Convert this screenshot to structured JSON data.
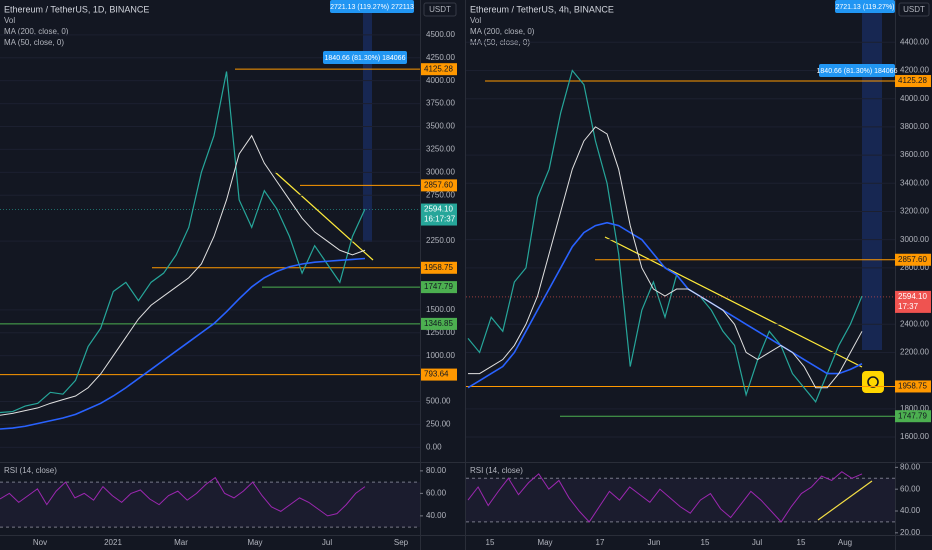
{
  "currency": "USDT",
  "panels": [
    {
      "title": "Ethereum / TetherUS, 1D, BINANCE",
      "indicators": [
        "Vol",
        "MA (200, close, 0)",
        "MA (50, close, 0)"
      ],
      "ylim": [
        -160,
        4880
      ],
      "yticks": [
        {
          "value": 4500,
          "label": "4500.00"
        },
        {
          "value": 4250,
          "label": "4250.00"
        },
        {
          "value": 4000,
          "label": "4000.00"
        },
        {
          "value": 3750,
          "label": "3750.00"
        },
        {
          "value": 3500,
          "label": "3500.00"
        },
        {
          "value": 3250,
          "label": "3250.00"
        },
        {
          "value": 3000,
          "label": "3000.00"
        },
        {
          "value": 2750,
          "label": "2750.00"
        },
        {
          "value": 2250,
          "label": "2250.00"
        },
        {
          "value": 1500,
          "label": "1500.00"
        },
        {
          "value": 1250,
          "label": "1250.00"
        },
        {
          "value": 1000,
          "label": "1000.00"
        },
        {
          "value": 500,
          "label": "500.00"
        },
        {
          "value": 250,
          "label": "250.00"
        },
        {
          "value": 0,
          "label": "0.00"
        }
      ],
      "levels": [
        {
          "value": 4125.28,
          "label": "4125.28",
          "color": "#ff9800"
        },
        {
          "value": 2857.6,
          "label": "2857.60",
          "color": "#ff9800"
        },
        {
          "value": 1958.75,
          "label": "1958.75",
          "color": "#ff9800"
        },
        {
          "value": 1747.79,
          "label": "1747.79",
          "color": "#4caf50"
        },
        {
          "value": 1346.85,
          "label": "1346.85",
          "color": "#4caf50"
        },
        {
          "value": 793.64,
          "label": "793.64",
          "color": "#ff9800"
        }
      ],
      "badge": {
        "value": 2594.1,
        "label": "2594.10",
        "countdown": "16:17:37",
        "color": "#26a69a"
      },
      "measures": [
        "2721.13 (119.27%) 272113",
        "1840.66 (81.30%) 184066"
      ],
      "time_labels": [
        "Nov",
        "2021",
        "Mar",
        "May",
        "Jul",
        "Sep"
      ],
      "rsi_label": "RSI (14, close)",
      "rsi_ylim": [
        23,
        87
      ],
      "rsi_ticks": [
        {
          "value": 80,
          "label": "80.00"
        },
        {
          "value": 60,
          "label": "60.00"
        },
        {
          "value": 40,
          "label": "40.00"
        }
      ],
      "rsi_bands": [
        70,
        30
      ],
      "price": [
        380,
        390,
        450,
        480,
        600,
        580,
        730,
        1100,
        1300,
        1700,
        1800,
        1600,
        1800,
        1900,
        2100,
        2400,
        3000,
        3400,
        4100,
        2700,
        2400,
        2800,
        2600,
        2300,
        1900,
        2200,
        2000,
        1800,
        2300,
        2600
      ],
      "ma50": [
        350,
        370,
        400,
        430,
        480,
        520,
        560,
        650,
        800,
        1000,
        1200,
        1400,
        1550,
        1650,
        1750,
        1850,
        2000,
        2300,
        2700,
        3200,
        3400,
        3100,
        2900,
        2700,
        2500,
        2350,
        2250,
        2150,
        2100,
        2150
      ],
      "ma200": [
        200,
        210,
        230,
        260,
        290,
        320,
        360,
        420,
        480,
        560,
        650,
        750,
        850,
        950,
        1050,
        1150,
        1250,
        1350,
        1480,
        1620,
        1750,
        1850,
        1920,
        1970,
        2000,
        2020,
        2030,
        2040,
        2050,
        2060
      ],
      "rsi": [
        55,
        60,
        52,
        58,
        64,
        50,
        62,
        70,
        56,
        60,
        54,
        66,
        58,
        52,
        60,
        63,
        55,
        50,
        58,
        62,
        54,
        60,
        68,
        74,
        60,
        56,
        62,
        70,
        58,
        48,
        44,
        50,
        56,
        52,
        46,
        40,
        42,
        50,
        60,
        66
      ]
    },
    {
      "title": "Ethereum / TetherUS, 4h, BINANCE",
      "indicators": [
        "Vol",
        "MA (200, close, 0)",
        "MA (50, close, 0)"
      ],
      "ylim": [
        1423,
        4700
      ],
      "yticks": [
        {
          "value": 4400,
          "label": "4400.00"
        },
        {
          "value": 4200,
          "label": "4200.00"
        },
        {
          "value": 4000,
          "label": "4000.00"
        },
        {
          "value": 3800,
          "label": "3800.00"
        },
        {
          "value": 3600,
          "label": "3600.00"
        },
        {
          "value": 3400,
          "label": "3400.00"
        },
        {
          "value": 3200,
          "label": "3200.00"
        },
        {
          "value": 3000,
          "label": "3000.00"
        },
        {
          "value": 2800,
          "label": "2800.00"
        },
        {
          "value": 2400,
          "label": "2400.00"
        },
        {
          "value": 2200,
          "label": "2200.00"
        },
        {
          "value": 1800,
          "label": "1800.00"
        },
        {
          "value": 1600,
          "label": "1600.00"
        }
      ],
      "levels": [
        {
          "value": 4125.28,
          "label": "4125.28",
          "color": "#ff9800"
        },
        {
          "value": 2857.6,
          "label": "2857.60",
          "color": "#ff9800"
        },
        {
          "value": 1958.75,
          "label": "1958.75",
          "color": "#ff9800"
        },
        {
          "value": 1747.79,
          "label": "1747.79",
          "color": "#4caf50"
        }
      ],
      "badge": {
        "value": 2594.1,
        "label": "2594.10",
        "countdown": "17:37",
        "color": "#ef5350"
      },
      "measures": [
        "2721.13 (119.27%)",
        "1840.66 (81.30%) 184066"
      ],
      "time_labels": [
        "15",
        "May",
        "17",
        "Jun",
        "15",
        "Jul",
        "15",
        "Aug"
      ],
      "rsi_label": "RSI (14, close)",
      "rsi_ylim": [
        18,
        84
      ],
      "rsi_ticks": [
        {
          "value": 80,
          "label": "80.00"
        },
        {
          "value": 60,
          "label": "60.00"
        },
        {
          "value": 40,
          "label": "40.00"
        },
        {
          "value": 20,
          "label": "20.00"
        }
      ],
      "rsi_bands": [
        70,
        30
      ],
      "price": [
        2300,
        2200,
        2450,
        2350,
        2700,
        2800,
        3300,
        3500,
        3900,
        4200,
        4100,
        3700,
        3400,
        2900,
        2100,
        2500,
        2700,
        2450,
        2750,
        2650,
        2600,
        2500,
        2350,
        2250,
        1900,
        2150,
        2350,
        2250,
        2050,
        1950,
        1850,
        2050,
        2250,
        2400,
        2600
      ],
      "ma50": [
        2050,
        2050,
        2100,
        2150,
        2250,
        2400,
        2600,
        2900,
        3200,
        3500,
        3700,
        3800,
        3750,
        3500,
        3100,
        2800,
        2650,
        2600,
        2650,
        2650,
        2600,
        2550,
        2500,
        2400,
        2200,
        2150,
        2200,
        2250,
        2200,
        2100,
        1950,
        1950,
        2050,
        2200,
        2350
      ],
      "ma200": [
        1950,
        2000,
        2050,
        2100,
        2200,
        2350,
        2500,
        2650,
        2800,
        2950,
        3050,
        3100,
        3120,
        3100,
        3050,
        3000,
        2900,
        2800,
        2750,
        2650,
        2600,
        2550,
        2500,
        2450,
        2400,
        2350,
        2300,
        2250,
        2200,
        2150,
        2100,
        2050,
        2050,
        2080,
        2120
      ],
      "rsi": [
        50,
        62,
        45,
        58,
        70,
        55,
        66,
        74,
        60,
        68,
        52,
        40,
        30,
        44,
        58,
        50,
        62,
        55,
        48,
        60,
        52,
        44,
        38,
        50,
        56,
        42,
        34,
        46,
        58,
        50,
        40,
        30,
        44,
        56,
        62,
        72,
        68,
        76,
        70,
        74
      ]
    }
  ]
}
